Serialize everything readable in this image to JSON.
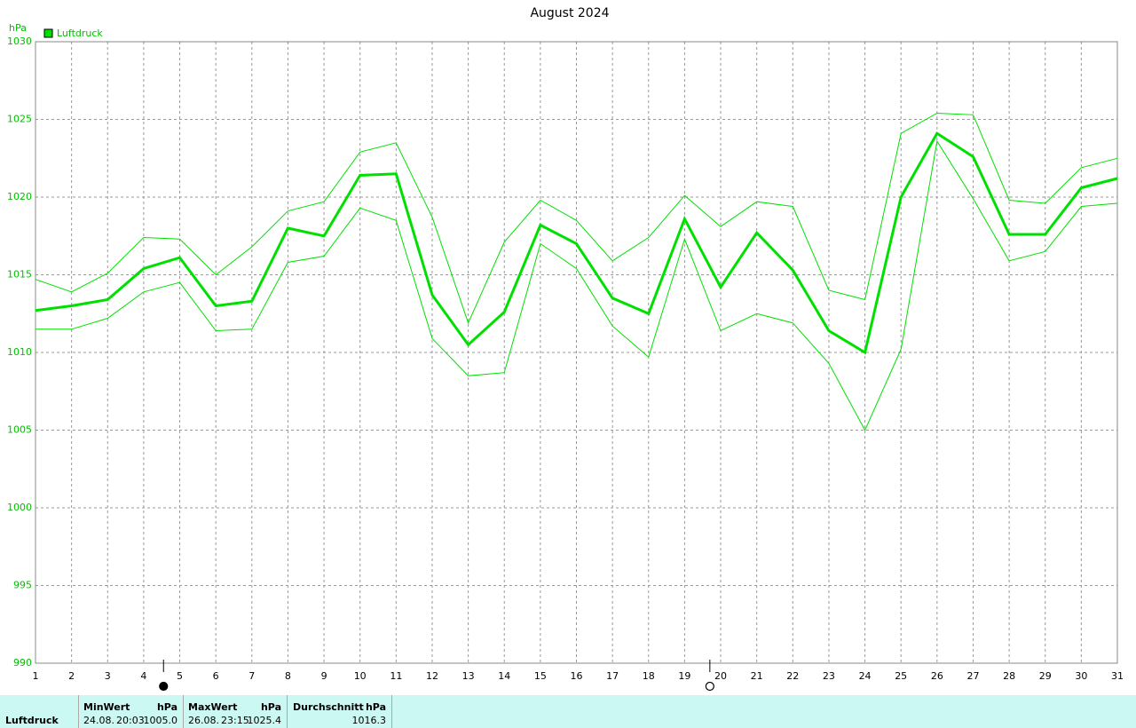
{
  "chart_data": {
    "type": "line",
    "title": "August 2024",
    "y_label": "hPa",
    "x": [
      1,
      2,
      3,
      4,
      5,
      6,
      7,
      8,
      9,
      10,
      11,
      12,
      13,
      14,
      15,
      16,
      17,
      18,
      19,
      20,
      21,
      22,
      23,
      24,
      25,
      26,
      27,
      28,
      29,
      30,
      31
    ],
    "xlim": [
      1,
      31
    ],
    "xticks": [
      1,
      2,
      3,
      4,
      5,
      6,
      7,
      8,
      9,
      10,
      11,
      12,
      13,
      14,
      15,
      16,
      17,
      18,
      19,
      20,
      21,
      22,
      23,
      24,
      25,
      26,
      27,
      28,
      29,
      30,
      31
    ],
    "ylim": [
      990,
      1030
    ],
    "yticks": [
      990,
      995,
      1000,
      1005,
      1010,
      1015,
      1020,
      1025,
      1030
    ],
    "grid": true,
    "legend": "top-left",
    "series": [
      {
        "name": "Luftdruck",
        "color": "#00e000",
        "width": 3,
        "values": [
          1012.7,
          1013.0,
          1013.4,
          1015.4,
          1016.1,
          1013.0,
          1013.3,
          1018.0,
          1017.5,
          1021.4,
          1021.5,
          1013.7,
          1010.5,
          1012.6,
          1018.2,
          1017.0,
          1013.5,
          1012.5,
          1018.6,
          1014.2,
          1017.7,
          1015.3,
          1011.4,
          1010.0,
          1020.0,
          1024.1,
          1022.6,
          1017.6,
          1017.6,
          1020.6,
          1021.2
        ]
      },
      {
        "color": "#00e000",
        "width": 1,
        "values": [
          1014.7,
          1013.9,
          1015.1,
          1017.4,
          1017.3,
          1015.0,
          1016.8,
          1019.1,
          1019.7,
          1022.9,
          1023.5,
          1018.7,
          1011.9,
          1017.1,
          1019.8,
          1018.5,
          1015.9,
          1017.4,
          1020.1,
          1018.1,
          1019.7,
          1019.4,
          1014.0,
          1013.4,
          1024.1,
          1025.4,
          1025.3,
          1019.8,
          1019.6,
          1021.9,
          1022.5
        ]
      },
      {
        "color": "#00e000",
        "width": 1,
        "values": [
          1011.5,
          1011.5,
          1012.2,
          1013.9,
          1014.5,
          1011.4,
          1011.5,
          1015.8,
          1016.2,
          1019.3,
          1018.5,
          1010.9,
          1008.5,
          1008.7,
          1017.0,
          1015.4,
          1011.7,
          1009.7,
          1017.3,
          1011.4,
          1012.5,
          1011.9,
          1009.3,
          1005.0,
          1010.2,
          1023.6,
          1019.9,
          1015.9,
          1016.5,
          1019.4,
          1019.6
        ]
      }
    ],
    "markers": [
      {
        "x": 4.55,
        "filled": true
      },
      {
        "x": 19.7,
        "filled": false
      }
    ]
  },
  "table": {
    "row_label": "Luftdruck",
    "columns": [
      {
        "title": "MinWert",
        "unit": "hPa",
        "date": "24.08.",
        "time": "20:03",
        "value": "1005.0"
      },
      {
        "title": "MaxWert",
        "unit": "hPa",
        "date": "26.08.",
        "time": "23:15",
        "value": "1025.4"
      },
      {
        "title": "Durchschnitt",
        "unit": "hPa",
        "value": "1016.3"
      }
    ]
  }
}
